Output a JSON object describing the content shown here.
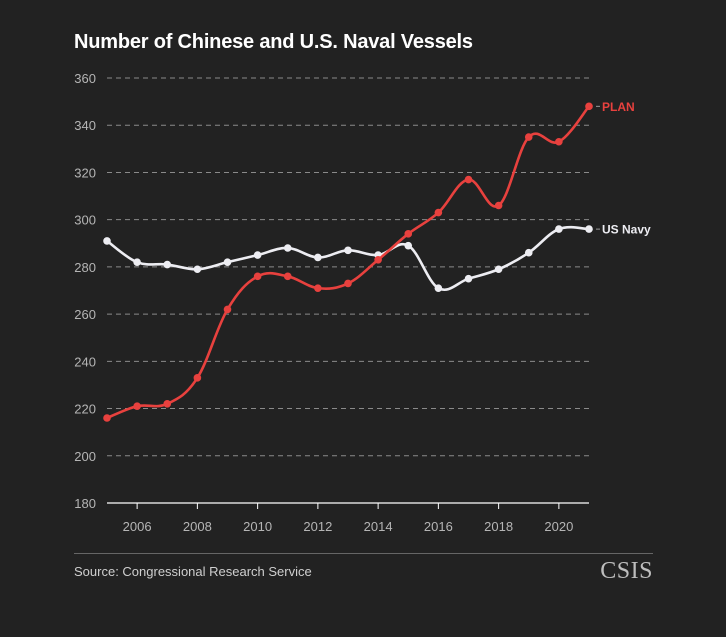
{
  "title": "Number of Chinese and U.S. Naval Vessels",
  "source": "Source: Congressional Research Service",
  "logo": "CSIS",
  "chart_data": {
    "type": "line",
    "title": "Number of Chinese and U.S. Naval Vessels",
    "xlabel": "",
    "ylabel": "",
    "x": [
      2005,
      2006,
      2007,
      2008,
      2009,
      2010,
      2011,
      2012,
      2013,
      2014,
      2015,
      2016,
      2017,
      2018,
      2019,
      2020,
      2021
    ],
    "xlim": [
      2005,
      2021
    ],
    "ylim": [
      180,
      360
    ],
    "xticks": [
      2006,
      2008,
      2010,
      2012,
      2014,
      2016,
      2018,
      2020
    ],
    "yticks": [
      180,
      200,
      220,
      240,
      260,
      280,
      300,
      320,
      340,
      360
    ],
    "grid": true,
    "legend": "direct-labels-right",
    "series": [
      {
        "name": "PLAN",
        "color": "#e8413e",
        "values": [
          216,
          221,
          222,
          233,
          262,
          276,
          276,
          271,
          273,
          283,
          294,
          303,
          317,
          306,
          335,
          333,
          348
        ]
      },
      {
        "name": "US Navy",
        "color": "#ededf2",
        "values": [
          291,
          282,
          281,
          279,
          282,
          285,
          288,
          284,
          287,
          285,
          289,
          271,
          275,
          279,
          286,
          296,
          296
        ]
      }
    ]
  }
}
